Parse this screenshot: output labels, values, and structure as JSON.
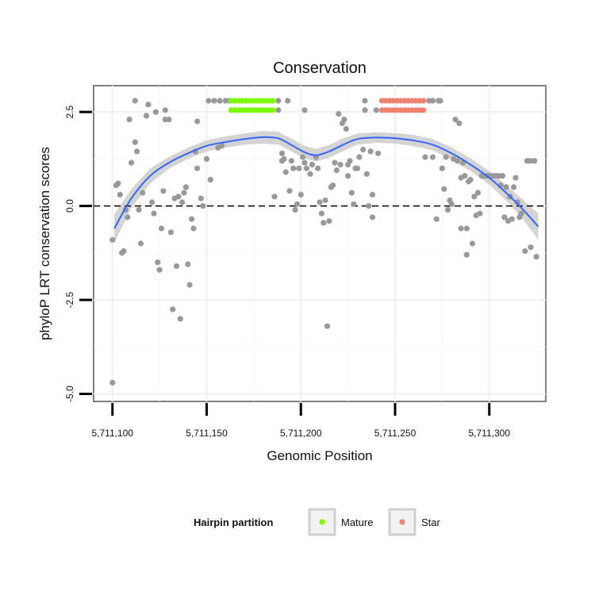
{
  "chart_data": {
    "type": "scatter",
    "title": "Conservation",
    "xlabel": "Genomic Position",
    "ylabel": "phyloP LRT conservation scores",
    "xlim": [
      5711090,
      5711330
    ],
    "ylim": [
      -5.2,
      3.2
    ],
    "x_ticks": [
      5711100,
      5711150,
      5711200,
      5711250,
      5711300
    ],
    "x_tick_labels": [
      "5,711,100",
      "5,711,150",
      "5,711,200",
      "5,711,250",
      "5,711,300"
    ],
    "y_ticks": [
      -5.0,
      -2.5,
      0.0,
      2.5
    ],
    "y_tick_labels": [
      "-5.0",
      "-2.5",
      "0.0",
      "2.5"
    ],
    "reference_line": {
      "y": 0,
      "style": "dashed"
    },
    "grid": true,
    "colors": {
      "points": "#999999",
      "mature": "#7CFC00",
      "star": "#F08070",
      "smooth": "#3366FF",
      "ribbon": "#cccccc"
    },
    "points": [
      [
        5711100,
        -0.9
      ],
      [
        5711100,
        -4.7
      ],
      [
        5711102,
        0.55
      ],
      [
        5711103,
        0.6
      ],
      [
        5711104,
        0.3
      ],
      [
        5711105,
        -1.25
      ],
      [
        5711106,
        -1.2
      ],
      [
        5711107,
        -0.1
      ],
      [
        5711108,
        -0.3
      ],
      [
        5711109,
        2.3
      ],
      [
        5711110,
        1.15
      ],
      [
        5711112,
        2.8
      ],
      [
        5711112,
        1.7
      ],
      [
        5711113,
        1.45
      ],
      [
        5711114,
        -0.1
      ],
      [
        5711115,
        -1.0
      ],
      [
        5711116,
        0.35
      ],
      [
        5711118,
        2.4
      ],
      [
        5711119,
        2.7
      ],
      [
        5711121,
        0.1
      ],
      [
        5711122,
        -0.2
      ],
      [
        5711123,
        2.5
      ],
      [
        5711124,
        -1.5
      ],
      [
        5711125,
        -1.7
      ],
      [
        5711126,
        -0.6
      ],
      [
        5711127,
        0.4
      ],
      [
        5711128,
        2.3
      ],
      [
        5711128,
        2.55
      ],
      [
        5711130,
        2.3
      ],
      [
        5711131,
        -0.7
      ],
      [
        5711132,
        -2.75
      ],
      [
        5711133,
        0.2
      ],
      [
        5711134,
        -1.6
      ],
      [
        5711135,
        0.25
      ],
      [
        5711136,
        -3.0
      ],
      [
        5711137,
        0.1
      ],
      [
        5711138,
        0.35
      ],
      [
        5711139,
        0.5
      ],
      [
        5711140,
        -1.55
      ],
      [
        5711141,
        -2.1
      ],
      [
        5711142,
        -0.35
      ],
      [
        5711143,
        -0.6
      ],
      [
        5711144,
        1.45
      ],
      [
        5711145,
        2.25
      ],
      [
        5711145,
        1.0
      ],
      [
        5711147,
        0.2
      ],
      [
        5711148,
        0.0
      ],
      [
        5711150,
        1.25
      ],
      [
        5711151,
        2.8
      ],
      [
        5711152,
        0.7
      ],
      [
        5711154,
        2.8
      ],
      [
        5711156,
        1.55
      ],
      [
        5711157,
        2.8
      ],
      [
        5711158,
        1.6
      ],
      [
        5711160,
        2.8
      ],
      [
        5711162,
        2.8
      ],
      [
        5711186,
        0.25
      ],
      [
        5711188,
        2.55
      ],
      [
        5711188,
        2.8
      ],
      [
        5711190,
        1.4
      ],
      [
        5711190,
        1.2
      ],
      [
        5711191,
        1.25
      ],
      [
        5711192,
        0.9
      ],
      [
        5711193,
        2.8
      ],
      [
        5711194,
        0.4
      ],
      [
        5711195,
        1.2
      ],
      [
        5711196,
        1.0
      ],
      [
        5711197,
        -0.1
      ],
      [
        5711198,
        0.05
      ],
      [
        5711199,
        1.0
      ],
      [
        5711200,
        0.3
      ],
      [
        5711201,
        1.3
      ],
      [
        5711202,
        1.15
      ],
      [
        5711202,
        2.55
      ],
      [
        5711203,
        1.0
      ],
      [
        5711205,
        0.85
      ],
      [
        5711206,
        1.1
      ],
      [
        5711208,
        1.3
      ],
      [
        5711209,
        1.0
      ],
      [
        5711210,
        0.1
      ],
      [
        5711211,
        -0.2
      ],
      [
        5711212,
        -0.45
      ],
      [
        5711213,
        0.15
      ],
      [
        5711214,
        -3.2
      ],
      [
        5711215,
        -0.4
      ],
      [
        5711216,
        0.5
      ],
      [
        5711217,
        0.55
      ],
      [
        5711218,
        1.15
      ],
      [
        5711219,
        0.95
      ],
      [
        5711220,
        2.45
      ],
      [
        5711221,
        1.1
      ],
      [
        5711222,
        2.2
      ],
      [
        5711223,
        2.3
      ],
      [
        5711224,
        2.05
      ],
      [
        5711225,
        1.1
      ],
      [
        5711225,
        0.8
      ],
      [
        5711226,
        1.2
      ],
      [
        5711227,
        0.35
      ],
      [
        5711228,
        0.05
      ],
      [
        5711229,
        1.0
      ],
      [
        5711230,
        1.0
      ],
      [
        5711231,
        1.3
      ],
      [
        5711233,
        1.5
      ],
      [
        5711234,
        2.55
      ],
      [
        5711234,
        2.8
      ],
      [
        5711235,
        0.85
      ],
      [
        5711236,
        0.0
      ],
      [
        5711237,
        1.45
      ],
      [
        5711238,
        -0.3
      ],
      [
        5711238,
        0.3
      ],
      [
        5711240,
        2.55
      ],
      [
        5711241,
        1.4
      ],
      [
        5711266,
        1.3
      ],
      [
        5711268,
        2.8
      ],
      [
        5711270,
        2.8
      ],
      [
        5711270,
        1.3
      ],
      [
        5711272,
        -0.35
      ],
      [
        5711273,
        2.8
      ],
      [
        5711274,
        2.8
      ],
      [
        5711275,
        1.0
      ],
      [
        5711276,
        0.45
      ],
      [
        5711277,
        1.3
      ],
      [
        5711278,
        -0.1
      ],
      [
        5711279,
        0.15
      ],
      [
        5711280,
        0.05
      ],
      [
        5711281,
        1.25
      ],
      [
        5711282,
        2.3
      ],
      [
        5711283,
        1.2
      ],
      [
        5711284,
        2.2
      ],
      [
        5711285,
        0.75
      ],
      [
        5711285,
        -0.6
      ],
      [
        5711286,
        1.15
      ],
      [
        5711287,
        0.8
      ],
      [
        5711288,
        -1.3
      ],
      [
        5711288,
        -0.6
      ],
      [
        5711289,
        0.65
      ],
      [
        5711290,
        0.7
      ],
      [
        5711291,
        -1.0
      ],
      [
        5711292,
        0.25
      ],
      [
        5711293,
        -0.25
      ],
      [
        5711294,
        0.35
      ],
      [
        5711295,
        -0.2
      ],
      [
        5711296,
        0.8
      ],
      [
        5711297,
        0.8
      ],
      [
        5711298,
        0.8
      ],
      [
        5711299,
        0.8
      ],
      [
        5711300,
        0.8
      ],
      [
        5711301,
        0.8
      ],
      [
        5711302,
        0.8
      ],
      [
        5711303,
        0.8
      ],
      [
        5711304,
        0.8
      ],
      [
        5711305,
        0.8
      ],
      [
        5711306,
        0.55
      ],
      [
        5711307,
        0.8
      ],
      [
        5711308,
        -0.3
      ],
      [
        5711309,
        0.5
      ],
      [
        5711310,
        -0.4
      ],
      [
        5711311,
        0.25
      ],
      [
        5711312,
        -0.35
      ],
      [
        5711313,
        0.5
      ],
      [
        5711314,
        0.75
      ],
      [
        5711315,
        0.1
      ],
      [
        5711316,
        -0.3
      ],
      [
        5711317,
        -0.2
      ],
      [
        5711319,
        -1.2
      ],
      [
        5711320,
        1.2
      ],
      [
        5711321,
        1.2
      ],
      [
        5711322,
        1.2
      ],
      [
        5711322,
        -1.1
      ],
      [
        5711324,
        1.2
      ],
      [
        5711325,
        -1.35
      ]
    ],
    "mature_points": [
      [
        5711163,
        2.8
      ],
      [
        5711163,
        2.55
      ],
      [
        5711165,
        2.8
      ],
      [
        5711165,
        2.55
      ],
      [
        5711167,
        2.8
      ],
      [
        5711167,
        2.55
      ],
      [
        5711169,
        2.8
      ],
      [
        5711169,
        2.55
      ],
      [
        5711171,
        2.8
      ],
      [
        5711171,
        2.55
      ],
      [
        5711173,
        2.8
      ],
      [
        5711173,
        2.55
      ],
      [
        5711175,
        2.8
      ],
      [
        5711175,
        2.55
      ],
      [
        5711177,
        2.8
      ],
      [
        5711177,
        2.55
      ],
      [
        5711179,
        2.8
      ],
      [
        5711179,
        2.55
      ],
      [
        5711181,
        2.8
      ],
      [
        5711181,
        2.55
      ],
      [
        5711183,
        2.8
      ],
      [
        5711183,
        2.55
      ],
      [
        5711185,
        2.8
      ],
      [
        5711185,
        2.55
      ]
    ],
    "star_points": [
      [
        5711243,
        2.8
      ],
      [
        5711243,
        2.55
      ],
      [
        5711245,
        2.8
      ],
      [
        5711245,
        2.55
      ],
      [
        5711247,
        2.8
      ],
      [
        5711247,
        2.55
      ],
      [
        5711249,
        2.8
      ],
      [
        5711249,
        2.55
      ],
      [
        5711251,
        2.8
      ],
      [
        5711251,
        2.55
      ],
      [
        5711253,
        2.8
      ],
      [
        5711253,
        2.55
      ],
      [
        5711255,
        2.8
      ],
      [
        5711255,
        2.55
      ],
      [
        5711257,
        2.8
      ],
      [
        5711257,
        2.55
      ],
      [
        5711259,
        2.8
      ],
      [
        5711259,
        2.55
      ],
      [
        5711261,
        2.8
      ],
      [
        5711261,
        2.55
      ],
      [
        5711263,
        2.8
      ],
      [
        5711263,
        2.55
      ],
      [
        5711265,
        2.8
      ],
      [
        5711265,
        2.55
      ]
    ],
    "smooth_curve": [
      [
        5711101,
        -0.6
      ],
      [
        5711110,
        0.2
      ],
      [
        5711120,
        0.8
      ],
      [
        5711130,
        1.15
      ],
      [
        5711140,
        1.4
      ],
      [
        5711150,
        1.6
      ],
      [
        5711160,
        1.7
      ],
      [
        5711170,
        1.78
      ],
      [
        5711180,
        1.83
      ],
      [
        5711188,
        1.8
      ],
      [
        5711195,
        1.62
      ],
      [
        5711202,
        1.43
      ],
      [
        5711208,
        1.35
      ],
      [
        5711215,
        1.45
      ],
      [
        5711222,
        1.62
      ],
      [
        5711230,
        1.78
      ],
      [
        5711240,
        1.82
      ],
      [
        5711250,
        1.8
      ],
      [
        5711260,
        1.74
      ],
      [
        5711270,
        1.63
      ],
      [
        5711280,
        1.4
      ],
      [
        5711290,
        1.1
      ],
      [
        5711300,
        0.75
      ],
      [
        5711310,
        0.3
      ],
      [
        5711318,
        -0.1
      ],
      [
        5711326,
        -0.55
      ]
    ],
    "smooth_ribbon_halfwidth": [
      0.38,
      0.25,
      0.2,
      0.16,
      0.15,
      0.15,
      0.15,
      0.15,
      0.17,
      0.17,
      0.17,
      0.17,
      0.17,
      0.17,
      0.17,
      0.15,
      0.14,
      0.14,
      0.15,
      0.15,
      0.16,
      0.17,
      0.18,
      0.21,
      0.26,
      0.35
    ],
    "legend": {
      "title": "Hairpin partition",
      "entries": [
        {
          "label": "Mature",
          "color": "#7CFC00"
        },
        {
          "label": "Star",
          "color": "#F08070"
        }
      ],
      "position": "bottom"
    }
  }
}
